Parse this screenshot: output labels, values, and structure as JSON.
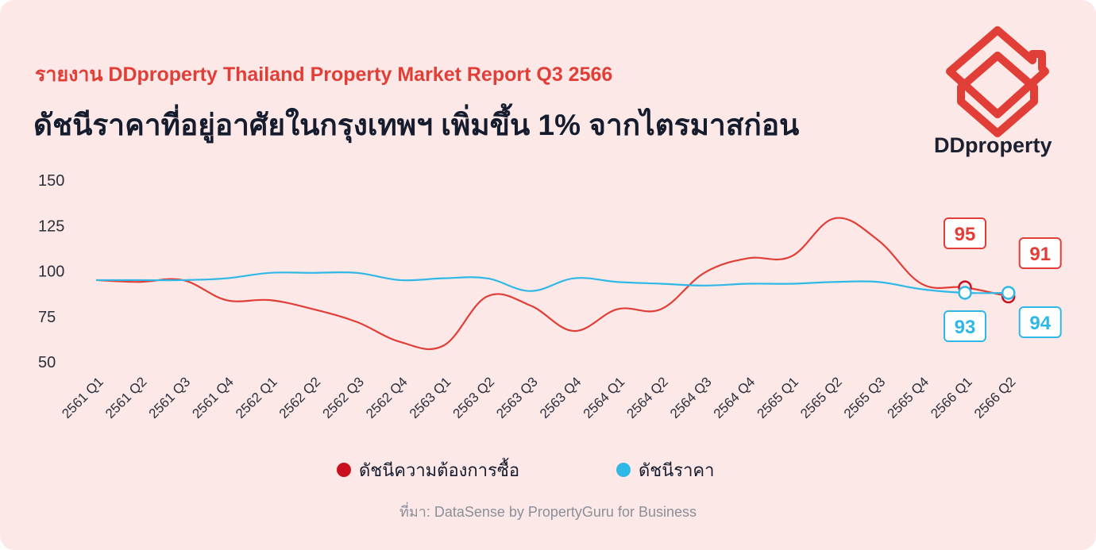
{
  "header": {
    "subtitle": "รายงาน DDproperty Thailand Property Market Report Q3 2566",
    "title": "ดัชนีราคาที่อยู่อาศัยในกรุงเทพฯ เพิ่มขึ้น 1% จากไตรมาสก่อน"
  },
  "brand": {
    "name": "DDproperty",
    "logo_icon": "ddproperty-house-logo-icon",
    "color": "#e03e36"
  },
  "source": "ที่มา: DataSense by PropertyGuru for Business",
  "chart_data": {
    "type": "line",
    "title": "",
    "xlabel": "",
    "ylabel": "",
    "ylim": [
      50,
      150
    ],
    "yticks": [
      150,
      125,
      100,
      75,
      50
    ],
    "grid": false,
    "legend_position": "bottom-center",
    "categories": [
      "2561 Q1",
      "2561 Q2",
      "2561 Q3",
      "2561 Q4",
      "2562 Q1",
      "2562 Q2",
      "2562 Q3",
      "2562 Q4",
      "2563 Q1",
      "2563 Q2",
      "2563 Q3",
      "2563 Q4",
      "2564 Q1",
      "2564 Q2",
      "2564 Q3",
      "2564 Q4",
      "2565 Q1",
      "2565 Q2",
      "2565 Q3",
      "2565 Q4",
      "2566 Q1",
      "2566 Q2"
    ],
    "series": [
      {
        "name": "ดัชนีความต้องการซื้อ",
        "color": "#e03e36",
        "marker_color": "#c8101e",
        "values": [
          95,
          94,
          95,
          84,
          84,
          79,
          72,
          61,
          59,
          86,
          81,
          67,
          79,
          79,
          99,
          107,
          108,
          129,
          117,
          93,
          91,
          86
        ]
      },
      {
        "name": "ดัชนีราคา",
        "color": "#2fb8e6",
        "marker_color": "#2fb8e6",
        "values": [
          95,
          95,
          95,
          96,
          99,
          99,
          99,
          95,
          96,
          96,
          89,
          96,
          94,
          93,
          92,
          93,
          93,
          94,
          94,
          90,
          88,
          88
        ]
      }
    ],
    "annotations": [
      {
        "label": "95",
        "series": 0
      },
      {
        "label": "91",
        "series": 0
      },
      {
        "label": "93",
        "series": 1
      },
      {
        "label": "94",
        "series": 1
      }
    ]
  }
}
